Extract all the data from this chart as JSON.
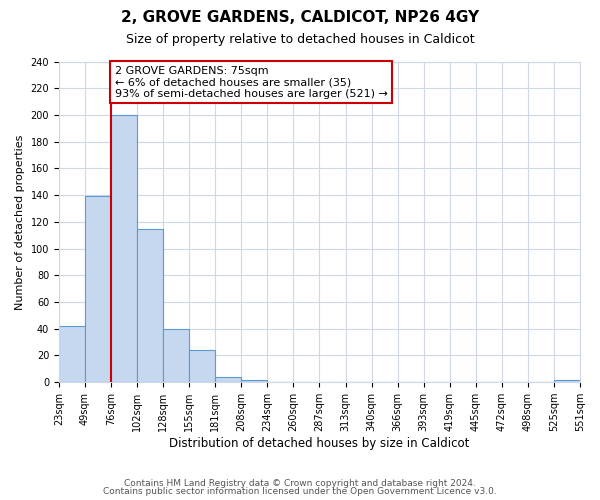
{
  "title": "2, GROVE GARDENS, CALDICOT, NP26 4GY",
  "subtitle": "Size of property relative to detached houses in Caldicot",
  "xlabel": "Distribution of detached houses by size in Caldicot",
  "ylabel": "Number of detached properties",
  "bin_labels": [
    "23sqm",
    "49sqm",
    "76sqm",
    "102sqm",
    "128sqm",
    "155sqm",
    "181sqm",
    "208sqm",
    "234sqm",
    "260sqm",
    "287sqm",
    "313sqm",
    "340sqm",
    "366sqm",
    "393sqm",
    "419sqm",
    "445sqm",
    "472sqm",
    "498sqm",
    "525sqm",
    "551sqm"
  ],
  "bar_heights": [
    42,
    139,
    200,
    115,
    40,
    24,
    4,
    2,
    0,
    0,
    0,
    0,
    0,
    0,
    0,
    0,
    0,
    0,
    0,
    2
  ],
  "bar_color": "#c5d8f0",
  "bar_edge_color": "#5b9bd5",
  "vline_index": 2,
  "vline_color": "#cc0000",
  "ylim": [
    0,
    240
  ],
  "yticks": [
    0,
    20,
    40,
    60,
    80,
    100,
    120,
    140,
    160,
    180,
    200,
    220,
    240
  ],
  "annotation_text": "2 GROVE GARDENS: 75sqm\n← 6% of detached houses are smaller (35)\n93% of semi-detached houses are larger (521) →",
  "annotation_box_facecolor": "#ffffff",
  "annotation_box_edgecolor": "#cc0000",
  "footer1": "Contains HM Land Registry data © Crown copyright and database right 2024.",
  "footer2": "Contains public sector information licensed under the Open Government Licence v3.0.",
  "title_fontsize": 11,
  "subtitle_fontsize": 9,
  "ylabel_fontsize": 8,
  "xlabel_fontsize": 8.5,
  "tick_fontsize": 7,
  "annotation_fontsize": 8,
  "footer_fontsize": 6.5
}
